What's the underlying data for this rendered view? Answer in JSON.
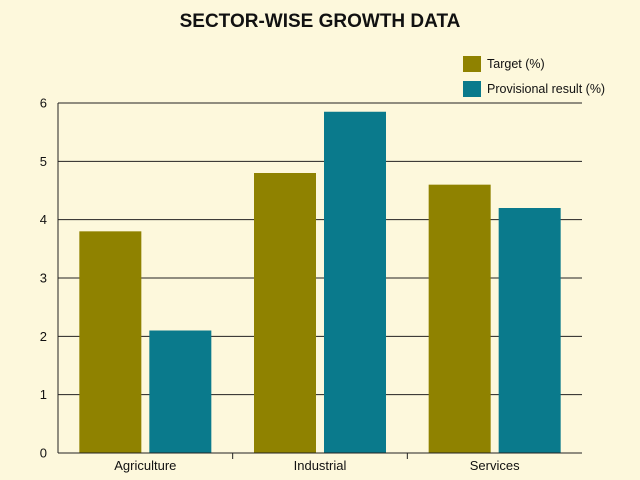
{
  "chart_data": {
    "type": "bar",
    "title": "SECTOR-WISE GROWTH DATA",
    "xlabel": "",
    "ylabel": "",
    "categories": [
      "Agriculture",
      "Industrial",
      "Services"
    ],
    "series": [
      {
        "name": "Target (%)",
        "color": "#8f8200",
        "values": [
          3.8,
          4.8,
          4.6
        ]
      },
      {
        "name": "Provisional result (%)",
        "color": "#0a7a8c",
        "values": [
          2.1,
          5.85,
          4.2
        ]
      }
    ],
    "ylim": [
      0,
      6
    ],
    "yticks": [
      0,
      1,
      2,
      3,
      4,
      5,
      6
    ],
    "grid": true,
    "legend_position": "top-right"
  }
}
